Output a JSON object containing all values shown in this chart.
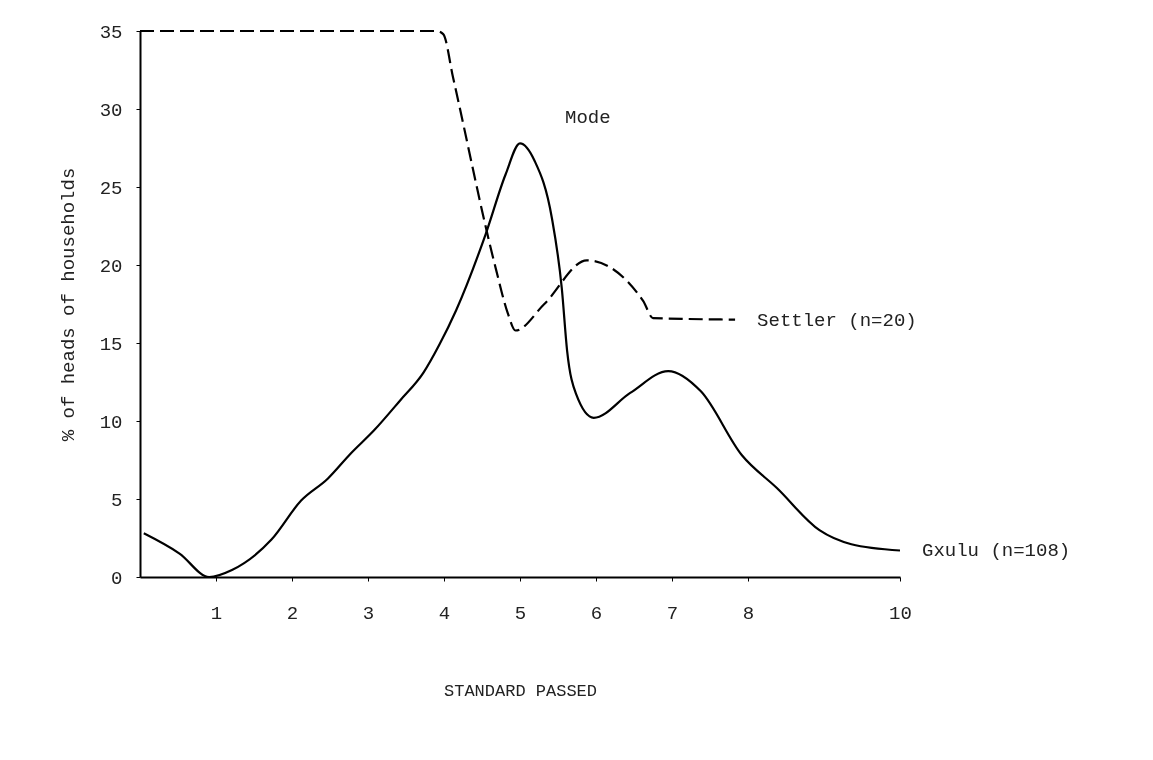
{
  "chart_data": {
    "type": "line",
    "xlabel": "STANDARD PASSED",
    "ylabel": "% of heads of households",
    "xlim": [
      0,
      10
    ],
    "xticks": [
      1,
      2,
      3,
      4,
      5,
      6,
      7,
      8,
      10
    ],
    "ylim": [
      0,
      35
    ],
    "yticks": [
      0,
      5,
      10,
      15,
      20,
      25,
      30,
      35
    ],
    "grid": false,
    "legend": false,
    "marker": "none",
    "series": [
      {
        "name": "Settler (n=20)",
        "color": "#000000",
        "line_style": "dashed",
        "x": [
          0,
          3.9,
          3.99,
          4.12,
          4.68,
          4.84,
          4.94,
          5.32,
          5.88,
          6.62,
          6.75,
          7.83
        ],
        "values": [
          35,
          35,
          34.8,
          32,
          19.8,
          16.9,
          15.8,
          17.5,
          20.3,
          17.7,
          16.6,
          16.5
        ]
      },
      {
        "name": "Gxulu (n=108)",
        "color": "#000000",
        "line_style": "solid",
        "x": [
          0.05,
          0.52,
          0.91,
          1.21,
          1.73,
          2.12,
          2.47,
          2.77,
          3.08,
          3.42,
          3.73,
          3.94,
          4.16,
          4.55,
          4.81,
          5.0,
          5.19,
          5.42,
          5.55,
          5.62,
          5.74,
          5.97,
          6.45,
          6.95,
          7.38,
          7.92,
          8.38,
          8.94,
          9.36,
          10
        ],
        "values": [
          2.8,
          1.5,
          0,
          0.45,
          2.4,
          4.9,
          6.3,
          7.9,
          9.4,
          11.3,
          13.1,
          14.9,
          17.1,
          22.0,
          25.8,
          27.8,
          26.7,
          23.0,
          18.5,
          14.5,
          11.7,
          10.2,
          11.8,
          13.2,
          11.9,
          7.8,
          5.7,
          3.0,
          2.1,
          1.7
        ]
      }
    ],
    "annotations": [
      {
        "text": "Mode",
        "x": 5.0,
        "y": 27.8
      }
    ]
  }
}
